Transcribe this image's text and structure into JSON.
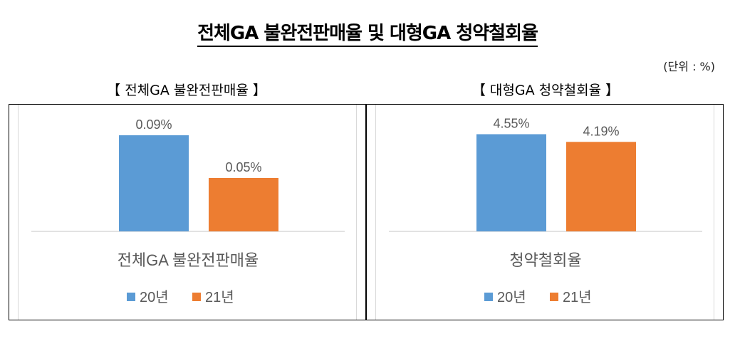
{
  "main_title": "전체GA 불완전판매율 및 대형GA 청약철회율",
  "unit_note": "(단위 : %)",
  "panels": [
    {
      "title": "【 전체GA 불완전판매율 】"
    },
    {
      "title": "【 대형GA 청약철회율 】"
    }
  ],
  "colors": {
    "series1": "#5B9BD5",
    "series2": "#ED7D31",
    "axis": "#d9d9d9",
    "text": "#595959"
  },
  "chart_data": [
    {
      "type": "bar",
      "categories": [
        "전체GA 불완전판매율"
      ],
      "series": [
        {
          "name": "20년",
          "values": [
            0.09
          ],
          "labels": [
            "0.09%"
          ]
        },
        {
          "name": "21년",
          "values": [
            0.05
          ],
          "labels": [
            "0.05%"
          ]
        }
      ],
      "ylim": [
        0,
        0.1
      ],
      "legend": "bottom",
      "grid": false
    },
    {
      "type": "bar",
      "categories": [
        "청약철회율"
      ],
      "series": [
        {
          "name": "20년",
          "values": [
            4.55
          ],
          "labels": [
            "4.55%"
          ]
        },
        {
          "name": "21년",
          "values": [
            4.19
          ],
          "labels": [
            "4.19%"
          ]
        }
      ],
      "ylim": [
        0,
        5.0
      ],
      "legend": "bottom",
      "grid": false
    }
  ]
}
